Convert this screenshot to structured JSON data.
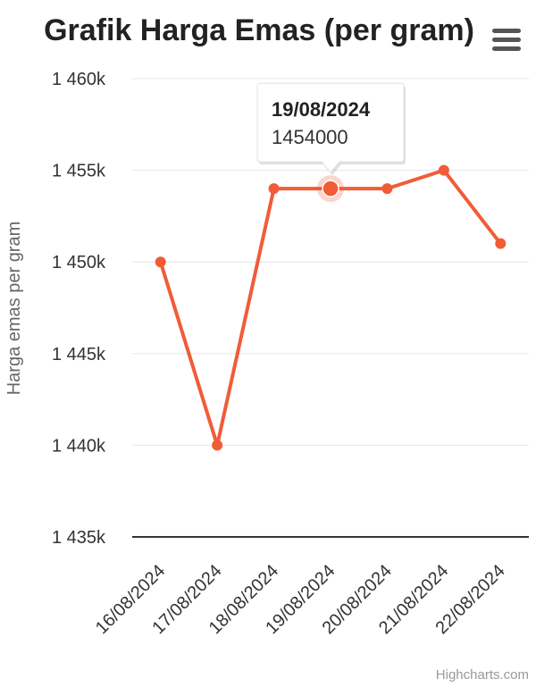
{
  "chart_data": {
    "type": "line",
    "title": "Grafik Harga Emas (per gram)",
    "ylabel": "Harga emas per gram",
    "xlabel": "",
    "categories": [
      "16/08/2024",
      "17/08/2024",
      "18/08/2024",
      "19/08/2024",
      "20/08/2024",
      "21/08/2024",
      "22/08/2024"
    ],
    "series": [
      {
        "values": [
          1450000,
          1440000,
          1454000,
          1454000,
          1454000,
          1455000,
          1451000
        ]
      }
    ],
    "ylim": [
      1435000,
      1460000
    ],
    "yticks": [
      1435000,
      1440000,
      1445000,
      1450000,
      1455000,
      1460000
    ],
    "ytick_labels": [
      "1 435k",
      "1 440k",
      "1 445k",
      "1 450k",
      "1 455k",
      "1 460k"
    ],
    "grid": true,
    "line_color": "#f15c37",
    "tooltip": {
      "index": 3,
      "date": "19/08/2024",
      "value": "1454000"
    },
    "credits": "Highcharts.com"
  },
  "menu": {
    "icon": "hamburger-menu-icon"
  }
}
